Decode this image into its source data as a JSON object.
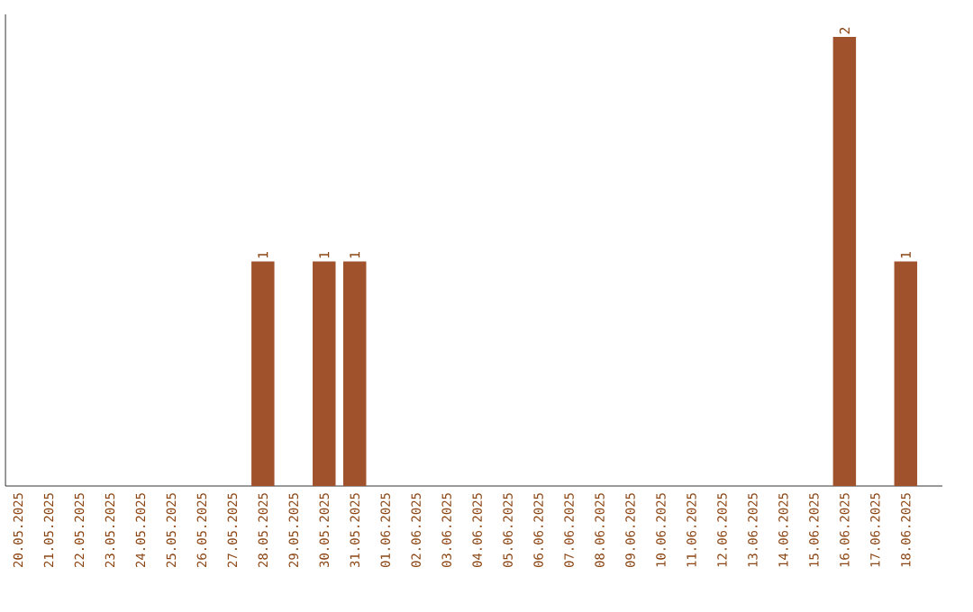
{
  "chart_data": {
    "type": "bar",
    "categories": [
      "20.05.2025",
      "21.05.2025",
      "22.05.2025",
      "23.05.2025",
      "24.05.2025",
      "25.05.2025",
      "26.05.2025",
      "27.05.2025",
      "28.05.2025",
      "29.05.2025",
      "30.05.2025",
      "31.05.2025",
      "01.06.2025",
      "02.06.2025",
      "03.06.2025",
      "04.06.2025",
      "05.06.2025",
      "06.06.2025",
      "07.06.2025",
      "08.06.2025",
      "09.06.2025",
      "10.06.2025",
      "11.06.2025",
      "12.06.2025",
      "13.06.2025",
      "14.06.2025",
      "15.06.2025",
      "16.06.2025",
      "17.06.2025",
      "18.06.2025"
    ],
    "values": [
      0,
      0,
      0,
      0,
      0,
      0,
      0,
      0,
      1,
      0,
      1,
      1,
      0,
      0,
      0,
      0,
      0,
      0,
      0,
      0,
      0,
      0,
      0,
      0,
      0,
      0,
      0,
      2,
      0,
      1
    ],
    "value_labels": [
      null,
      null,
      null,
      null,
      null,
      null,
      null,
      null,
      "1",
      null,
      "1",
      "1",
      null,
      null,
      null,
      null,
      null,
      null,
      null,
      null,
      null,
      null,
      null,
      null,
      null,
      null,
      null,
      "2",
      null,
      "1"
    ],
    "color": "#a0522d",
    "grid": false
  }
}
